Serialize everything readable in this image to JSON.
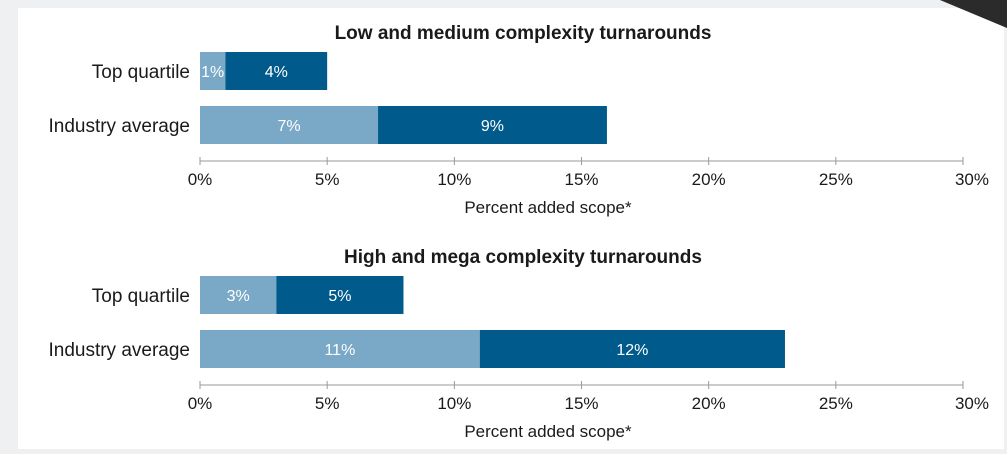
{
  "colors": {
    "background": "#eef0f1",
    "frame": "#ffffff",
    "light_segment": "#79a9c6",
    "dark_segment": "#005a8b",
    "axis": "#9a9a9a"
  },
  "chart_data": [
    {
      "type": "bar",
      "orientation": "horizontal",
      "stacked": true,
      "title": "Low and medium complexity turnarounds",
      "categories": [
        "Top quartile",
        "Industry average"
      ],
      "series": [
        {
          "values": [
            1,
            7
          ],
          "labels": [
            "1%",
            "7%"
          ]
        },
        {
          "values": [
            4,
            9
          ],
          "labels": [
            "4%",
            "9%"
          ]
        }
      ],
      "xlabel": "Percent added scope*",
      "xlim": [
        0,
        30
      ],
      "xticks": [
        "0%",
        "5%",
        "10%",
        "15%",
        "20%",
        "25%",
        "30%"
      ],
      "grid": false,
      "legend": "none"
    },
    {
      "type": "bar",
      "orientation": "horizontal",
      "stacked": true,
      "title": "High and mega complexity turnarounds",
      "categories": [
        "Top quartile",
        "Industry average"
      ],
      "series": [
        {
          "values": [
            3,
            11
          ],
          "labels": [
            "3%",
            "11%"
          ]
        },
        {
          "values": [
            5,
            12
          ],
          "labels": [
            "5%",
            "12%"
          ]
        }
      ],
      "xlabel": "Percent added scope*",
      "xlim": [
        0,
        30
      ],
      "xticks": [
        "0%",
        "5%",
        "10%",
        "15%",
        "20%",
        "25%",
        "30%"
      ],
      "grid": false,
      "legend": "none"
    }
  ]
}
